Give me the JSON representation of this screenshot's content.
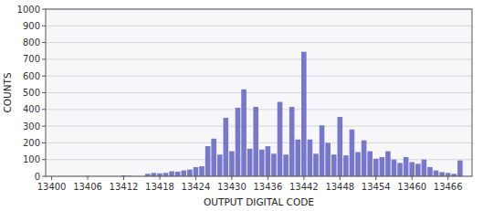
{
  "chart_data": {
    "type": "bar",
    "xlabel": "OUTPUT DIGITAL CODE",
    "ylabel": "COUNTS",
    "color": "#7777cc",
    "grid": true,
    "xlim": [
      13399,
      13470
    ],
    "xticks": [
      13400,
      13406,
      13412,
      13418,
      13424,
      13430,
      13436,
      13442,
      13448,
      13454,
      13460,
      13466
    ],
    "ylim": [
      0,
      1000
    ],
    "yticks": [
      0,
      100,
      200,
      300,
      400,
      500,
      600,
      700,
      800,
      900,
      1000
    ],
    "x": [
      13400,
      13401,
      13402,
      13403,
      13404,
      13405,
      13406,
      13407,
      13408,
      13409,
      13410,
      13411,
      13412,
      13413,
      13414,
      13415,
      13416,
      13417,
      13418,
      13419,
      13420,
      13421,
      13422,
      13423,
      13424,
      13425,
      13426,
      13427,
      13428,
      13429,
      13430,
      13431,
      13432,
      13433,
      13434,
      13435,
      13436,
      13437,
      13438,
      13439,
      13440,
      13441,
      13442,
      13443,
      13444,
      13445,
      13446,
      13447,
      13448,
      13449,
      13450,
      13451,
      13452,
      13453,
      13454,
      13455,
      13456,
      13457,
      13458,
      13459,
      13460,
      13461,
      13462,
      13463,
      13464,
      13465,
      13466,
      13467,
      13468
    ],
    "values": [
      0,
      0,
      0,
      0,
      0,
      0,
      2,
      0,
      0,
      0,
      0,
      0,
      5,
      3,
      0,
      0,
      15,
      20,
      18,
      20,
      30,
      28,
      35,
      40,
      55,
      60,
      180,
      225,
      130,
      350,
      150,
      410,
      520,
      165,
      415,
      160,
      180,
      135,
      445,
      130,
      415,
      220,
      745,
      220,
      135,
      305,
      200,
      130,
      355,
      125,
      280,
      145,
      215,
      150,
      105,
      115,
      150,
      100,
      80,
      115,
      85,
      75,
      100,
      55,
      35,
      25,
      20,
      15,
      95
    ]
  }
}
